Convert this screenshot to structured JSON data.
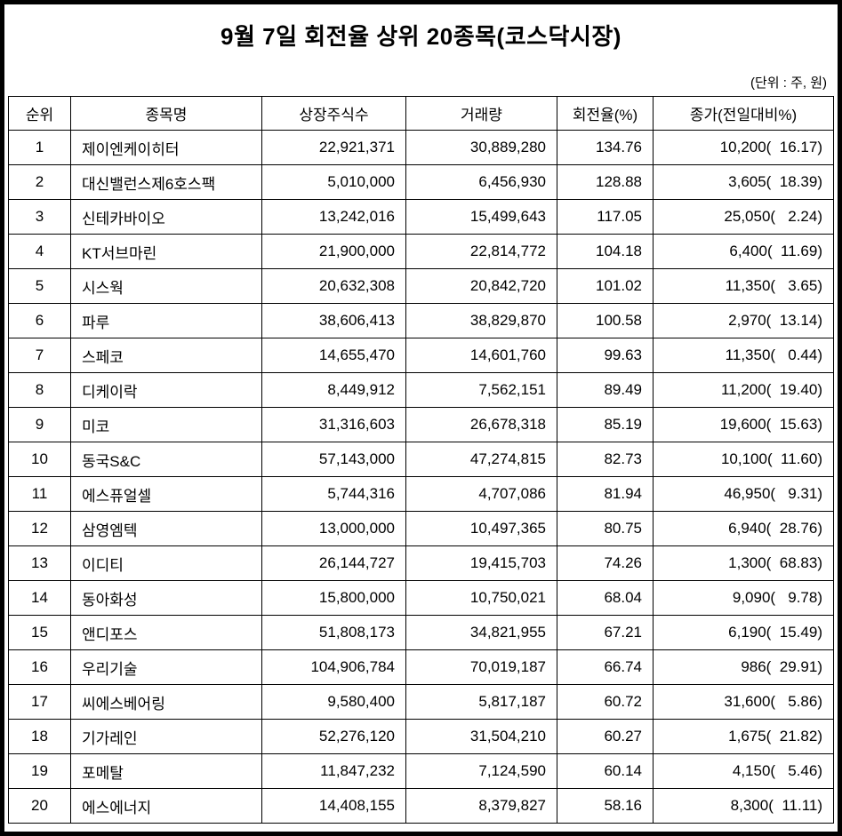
{
  "title": "9월 7일 회전율 상위 20종목(코스닥시장)",
  "unit_note": "(단위 : 주, 원)",
  "table": {
    "headers": [
      "순위",
      "종목명",
      "상장주식수",
      "거래량",
      "회전율(%)",
      "종가(전일대비%)"
    ],
    "column_names": [
      "rank-cell",
      "stock-name-cell",
      "listed-shares-cell",
      "volume-cell",
      "turnover-rate-cell",
      "closing-price-cell"
    ],
    "rows": [
      [
        "1",
        "제이엔케이히터",
        "22,921,371",
        "30,889,280",
        "134.76",
        "10,200(  16.17)"
      ],
      [
        "2",
        "대신밸런스제6호스팩",
        "5,010,000",
        "6,456,930",
        "128.88",
        "3,605(  18.39)"
      ],
      [
        "3",
        "신테카바이오",
        "13,242,016",
        "15,499,643",
        "117.05",
        "25,050(   2.24)"
      ],
      [
        "4",
        "KT서브마린",
        "21,900,000",
        "22,814,772",
        "104.18",
        "6,400(  11.69)"
      ],
      [
        "5",
        "시스웍",
        "20,632,308",
        "20,842,720",
        "101.02",
        "11,350(   3.65)"
      ],
      [
        "6",
        "파루",
        "38,606,413",
        "38,829,870",
        "100.58",
        "2,970(  13.14)"
      ],
      [
        "7",
        "스페코",
        "14,655,470",
        "14,601,760",
        "99.63",
        "11,350(   0.44)"
      ],
      [
        "8",
        "디케이락",
        "8,449,912",
        "7,562,151",
        "89.49",
        "11,200(  19.40)"
      ],
      [
        "9",
        "미코",
        "31,316,603",
        "26,678,318",
        "85.19",
        "19,600(  15.63)"
      ],
      [
        "10",
        "동국S&C",
        "57,143,000",
        "47,274,815",
        "82.73",
        "10,100(  11.60)"
      ],
      [
        "11",
        "에스퓨얼셀",
        "5,744,316",
        "4,707,086",
        "81.94",
        "46,950(   9.31)"
      ],
      [
        "12",
        "삼영엠텍",
        "13,000,000",
        "10,497,365",
        "80.75",
        "6,940(  28.76)"
      ],
      [
        "13",
        "이디티",
        "26,144,727",
        "19,415,703",
        "74.26",
        "1,300(  68.83)"
      ],
      [
        "14",
        "동아화성",
        "15,800,000",
        "10,750,021",
        "68.04",
        "9,090(   9.78)"
      ],
      [
        "15",
        "앤디포스",
        "51,808,173",
        "34,821,955",
        "67.21",
        "6,190(  15.49)"
      ],
      [
        "16",
        "우리기술",
        "104,906,784",
        "70,019,187",
        "66.74",
        "986(  29.91)"
      ],
      [
        "17",
        "씨에스베어링",
        "9,580,400",
        "5,817,187",
        "60.72",
        "31,600(   5.86)"
      ],
      [
        "18",
        "기가레인",
        "52,276,120",
        "31,504,210",
        "60.27",
        "1,675(  21.82)"
      ],
      [
        "19",
        "포메탈",
        "11,847,232",
        "7,124,590",
        "60.14",
        "4,150(   5.46)"
      ],
      [
        "20",
        "에스에너지",
        "14,408,155",
        "8,379,827",
        "58.16",
        "8,300(  11.11)"
      ]
    ]
  }
}
